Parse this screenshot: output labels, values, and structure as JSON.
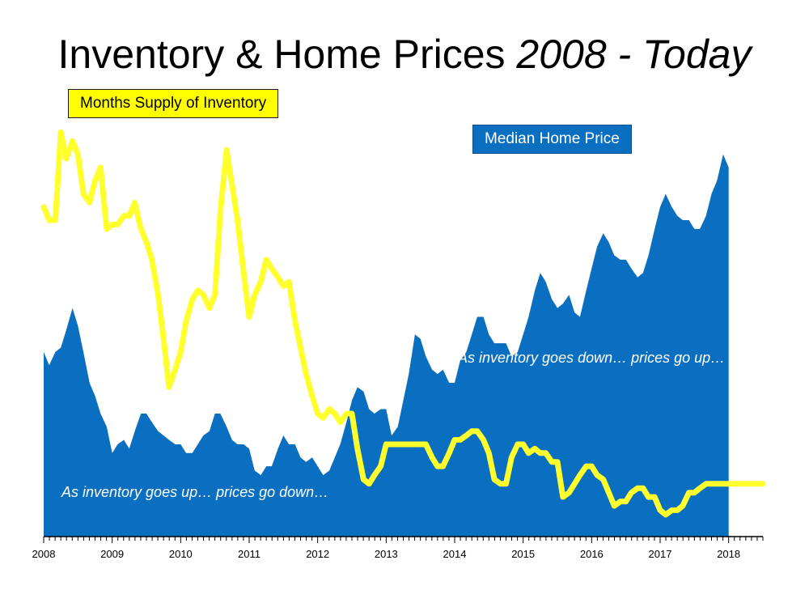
{
  "title": {
    "main": "Inventory & Home Prices",
    "italic": "2008 - Today"
  },
  "legend": {
    "supply_label": "Months Supply of Inventory",
    "price_label": "Median Home Price"
  },
  "annotations": {
    "down": "As inventory goes down… prices go up…",
    "up": "As inventory goes up… prices go down…"
  },
  "colors": {
    "price_fill": "#0b6fc1",
    "supply_line": "#ffff2e",
    "supply_legend": "#ffff00"
  },
  "chart_data": {
    "type": "line",
    "x_tick_labels": [
      "2008",
      "2009",
      "2010",
      "2011",
      "2012",
      "2013",
      "2014",
      "2015",
      "2016",
      "2017",
      "2018"
    ],
    "xlim": [
      2008.0,
      2018.5
    ],
    "y_scale": "relative",
    "series": [
      {
        "name": "Median Home Price",
        "type": "area",
        "points": [
          [
            2008.0,
            42
          ],
          [
            2008.08,
            39
          ],
          [
            2008.17,
            42
          ],
          [
            2008.25,
            43
          ],
          [
            2008.33,
            47
          ],
          [
            2008.42,
            52
          ],
          [
            2008.5,
            48
          ],
          [
            2008.58,
            42
          ],
          [
            2008.67,
            35
          ],
          [
            2008.75,
            32
          ],
          [
            2008.83,
            28
          ],
          [
            2008.92,
            25
          ],
          [
            2009.0,
            19
          ],
          [
            2009.08,
            21
          ],
          [
            2009.17,
            22
          ],
          [
            2009.25,
            20
          ],
          [
            2009.33,
            24
          ],
          [
            2009.42,
            28
          ],
          [
            2009.5,
            28
          ],
          [
            2009.58,
            26
          ],
          [
            2009.67,
            24
          ],
          [
            2009.75,
            23
          ],
          [
            2009.83,
            22
          ],
          [
            2009.92,
            21
          ],
          [
            2010.0,
            21
          ],
          [
            2010.08,
            19
          ],
          [
            2010.17,
            19
          ],
          [
            2010.25,
            21
          ],
          [
            2010.33,
            23
          ],
          [
            2010.42,
            24
          ],
          [
            2010.5,
            28
          ],
          [
            2010.58,
            28
          ],
          [
            2010.67,
            25
          ],
          [
            2010.75,
            22
          ],
          [
            2010.83,
            21
          ],
          [
            2010.92,
            21
          ],
          [
            2011.0,
            20
          ],
          [
            2011.08,
            15
          ],
          [
            2011.17,
            14
          ],
          [
            2011.25,
            16
          ],
          [
            2011.33,
            16
          ],
          [
            2011.42,
            20
          ],
          [
            2011.5,
            23
          ],
          [
            2011.58,
            21
          ],
          [
            2011.67,
            21
          ],
          [
            2011.75,
            18
          ],
          [
            2011.83,
            17
          ],
          [
            2011.92,
            18
          ],
          [
            2012.0,
            16
          ],
          [
            2012.08,
            14
          ],
          [
            2012.17,
            15
          ],
          [
            2012.25,
            18
          ],
          [
            2012.33,
            21
          ],
          [
            2012.42,
            26
          ],
          [
            2012.5,
            31
          ],
          [
            2012.58,
            34
          ],
          [
            2012.67,
            33
          ],
          [
            2012.75,
            29
          ],
          [
            2012.83,
            28
          ],
          [
            2012.92,
            29
          ],
          [
            2013.0,
            29
          ],
          [
            2013.08,
            23
          ],
          [
            2013.17,
            25
          ],
          [
            2013.25,
            31
          ],
          [
            2013.33,
            37
          ],
          [
            2013.42,
            46
          ],
          [
            2013.5,
            45
          ],
          [
            2013.58,
            41
          ],
          [
            2013.67,
            38
          ],
          [
            2013.75,
            37
          ],
          [
            2013.83,
            38
          ],
          [
            2013.92,
            35
          ],
          [
            2014.0,
            35
          ],
          [
            2014.08,
            40
          ],
          [
            2014.17,
            42
          ],
          [
            2014.25,
            46
          ],
          [
            2014.33,
            50
          ],
          [
            2014.42,
            50
          ],
          [
            2014.5,
            46
          ],
          [
            2014.58,
            44
          ],
          [
            2014.67,
            44
          ],
          [
            2014.75,
            44
          ],
          [
            2014.83,
            41
          ],
          [
            2014.92,
            42
          ],
          [
            2015.0,
            46
          ],
          [
            2015.08,
            50
          ],
          [
            2015.17,
            56
          ],
          [
            2015.25,
            60
          ],
          [
            2015.33,
            58
          ],
          [
            2015.42,
            54
          ],
          [
            2015.5,
            52
          ],
          [
            2015.58,
            53
          ],
          [
            2015.67,
            55
          ],
          [
            2015.75,
            51
          ],
          [
            2015.83,
            50
          ],
          [
            2015.92,
            56
          ],
          [
            2016.0,
            61
          ],
          [
            2016.08,
            66
          ],
          [
            2016.17,
            69
          ],
          [
            2016.25,
            67
          ],
          [
            2016.33,
            64
          ],
          [
            2016.42,
            63
          ],
          [
            2016.5,
            63
          ],
          [
            2016.58,
            61
          ],
          [
            2016.67,
            59
          ],
          [
            2016.75,
            60
          ],
          [
            2016.83,
            64
          ],
          [
            2016.92,
            70
          ],
          [
            2017.0,
            75
          ],
          [
            2017.08,
            78
          ],
          [
            2017.17,
            75
          ],
          [
            2017.25,
            73
          ],
          [
            2017.33,
            72
          ],
          [
            2017.42,
            72
          ],
          [
            2017.5,
            70
          ],
          [
            2017.58,
            70
          ],
          [
            2017.67,
            73
          ],
          [
            2017.75,
            78
          ],
          [
            2017.83,
            81
          ],
          [
            2017.92,
            87
          ],
          [
            2018.0,
            84
          ]
        ]
      },
      {
        "name": "Months Supply of Inventory",
        "type": "line",
        "points": [
          [
            2008.0,
            75
          ],
          [
            2008.08,
            72
          ],
          [
            2008.17,
            72
          ],
          [
            2008.25,
            92
          ],
          [
            2008.33,
            86
          ],
          [
            2008.42,
            90
          ],
          [
            2008.5,
            87
          ],
          [
            2008.58,
            78
          ],
          [
            2008.67,
            76
          ],
          [
            2008.75,
            81
          ],
          [
            2008.83,
            84
          ],
          [
            2008.92,
            70
          ],
          [
            2009.0,
            71
          ],
          [
            2009.08,
            71
          ],
          [
            2009.17,
            73
          ],
          [
            2009.25,
            73
          ],
          [
            2009.33,
            76
          ],
          [
            2009.42,
            70
          ],
          [
            2009.5,
            67
          ],
          [
            2009.58,
            63
          ],
          [
            2009.67,
            55
          ],
          [
            2009.75,
            45
          ],
          [
            2009.83,
            34
          ],
          [
            2009.92,
            38
          ],
          [
            2010.0,
            42
          ],
          [
            2010.08,
            49
          ],
          [
            2010.17,
            54
          ],
          [
            2010.25,
            56
          ],
          [
            2010.33,
            55
          ],
          [
            2010.42,
            52
          ],
          [
            2010.5,
            55
          ],
          [
            2010.58,
            74
          ],
          [
            2010.67,
            88
          ],
          [
            2010.75,
            80
          ],
          [
            2010.83,
            72
          ],
          [
            2010.92,
            60
          ],
          [
            2011.0,
            50
          ],
          [
            2011.08,
            55
          ],
          [
            2011.17,
            58
          ],
          [
            2011.25,
            63
          ],
          [
            2011.33,
            61
          ],
          [
            2011.42,
            59
          ],
          [
            2011.5,
            57
          ],
          [
            2011.58,
            58
          ],
          [
            2011.67,
            49
          ],
          [
            2011.75,
            43
          ],
          [
            2011.83,
            37
          ],
          [
            2011.92,
            32
          ],
          [
            2012.0,
            28
          ],
          [
            2012.08,
            27
          ],
          [
            2012.17,
            29
          ],
          [
            2012.25,
            28
          ],
          [
            2012.33,
            26
          ],
          [
            2012.42,
            28
          ],
          [
            2012.5,
            28
          ],
          [
            2012.58,
            20
          ],
          [
            2012.67,
            13
          ],
          [
            2012.75,
            12
          ],
          [
            2012.83,
            14
          ],
          [
            2012.92,
            16
          ],
          [
            2013.0,
            21
          ],
          [
            2013.08,
            21
          ],
          [
            2013.17,
            21
          ],
          [
            2013.25,
            21
          ],
          [
            2013.33,
            21
          ],
          [
            2013.42,
            21
          ],
          [
            2013.5,
            21
          ],
          [
            2013.58,
            21
          ],
          [
            2013.67,
            18
          ],
          [
            2013.75,
            16
          ],
          [
            2013.83,
            16
          ],
          [
            2013.92,
            19
          ],
          [
            2014.0,
            22
          ],
          [
            2014.08,
            22
          ],
          [
            2014.17,
            23
          ],
          [
            2014.25,
            24
          ],
          [
            2014.33,
            24
          ],
          [
            2014.42,
            22
          ],
          [
            2014.5,
            19
          ],
          [
            2014.58,
            13
          ],
          [
            2014.67,
            12
          ],
          [
            2014.75,
            12
          ],
          [
            2014.83,
            18
          ],
          [
            2014.92,
            21
          ],
          [
            2015.0,
            21
          ],
          [
            2015.08,
            19
          ],
          [
            2015.17,
            20
          ],
          [
            2015.25,
            19
          ],
          [
            2015.33,
            19
          ],
          [
            2015.42,
            17
          ],
          [
            2015.5,
            17
          ],
          [
            2015.58,
            9
          ],
          [
            2015.67,
            10
          ],
          [
            2015.75,
            12
          ],
          [
            2015.83,
            14
          ],
          [
            2015.92,
            16
          ],
          [
            2016.0,
            16
          ],
          [
            2016.08,
            14
          ],
          [
            2016.17,
            13
          ],
          [
            2016.25,
            10
          ],
          [
            2016.33,
            7
          ],
          [
            2016.42,
            8
          ],
          [
            2016.5,
            8
          ],
          [
            2016.58,
            10
          ],
          [
            2016.67,
            11
          ],
          [
            2016.75,
            11
          ],
          [
            2016.83,
            9
          ],
          [
            2016.92,
            9
          ],
          [
            2017.0,
            6
          ],
          [
            2017.08,
            5
          ],
          [
            2017.17,
            6
          ],
          [
            2017.25,
            6
          ],
          [
            2017.33,
            7
          ],
          [
            2017.42,
            10
          ],
          [
            2017.5,
            10
          ],
          [
            2017.58,
            11
          ],
          [
            2017.67,
            12
          ],
          [
            2017.75,
            12
          ],
          [
            2017.83,
            12
          ],
          [
            2017.92,
            12
          ],
          [
            2018.0,
            12
          ],
          [
            2018.08,
            12
          ],
          [
            2018.17,
            12
          ],
          [
            2018.25,
            12
          ],
          [
            2018.33,
            12
          ],
          [
            2018.42,
            12
          ],
          [
            2018.5,
            12
          ]
        ]
      }
    ]
  }
}
